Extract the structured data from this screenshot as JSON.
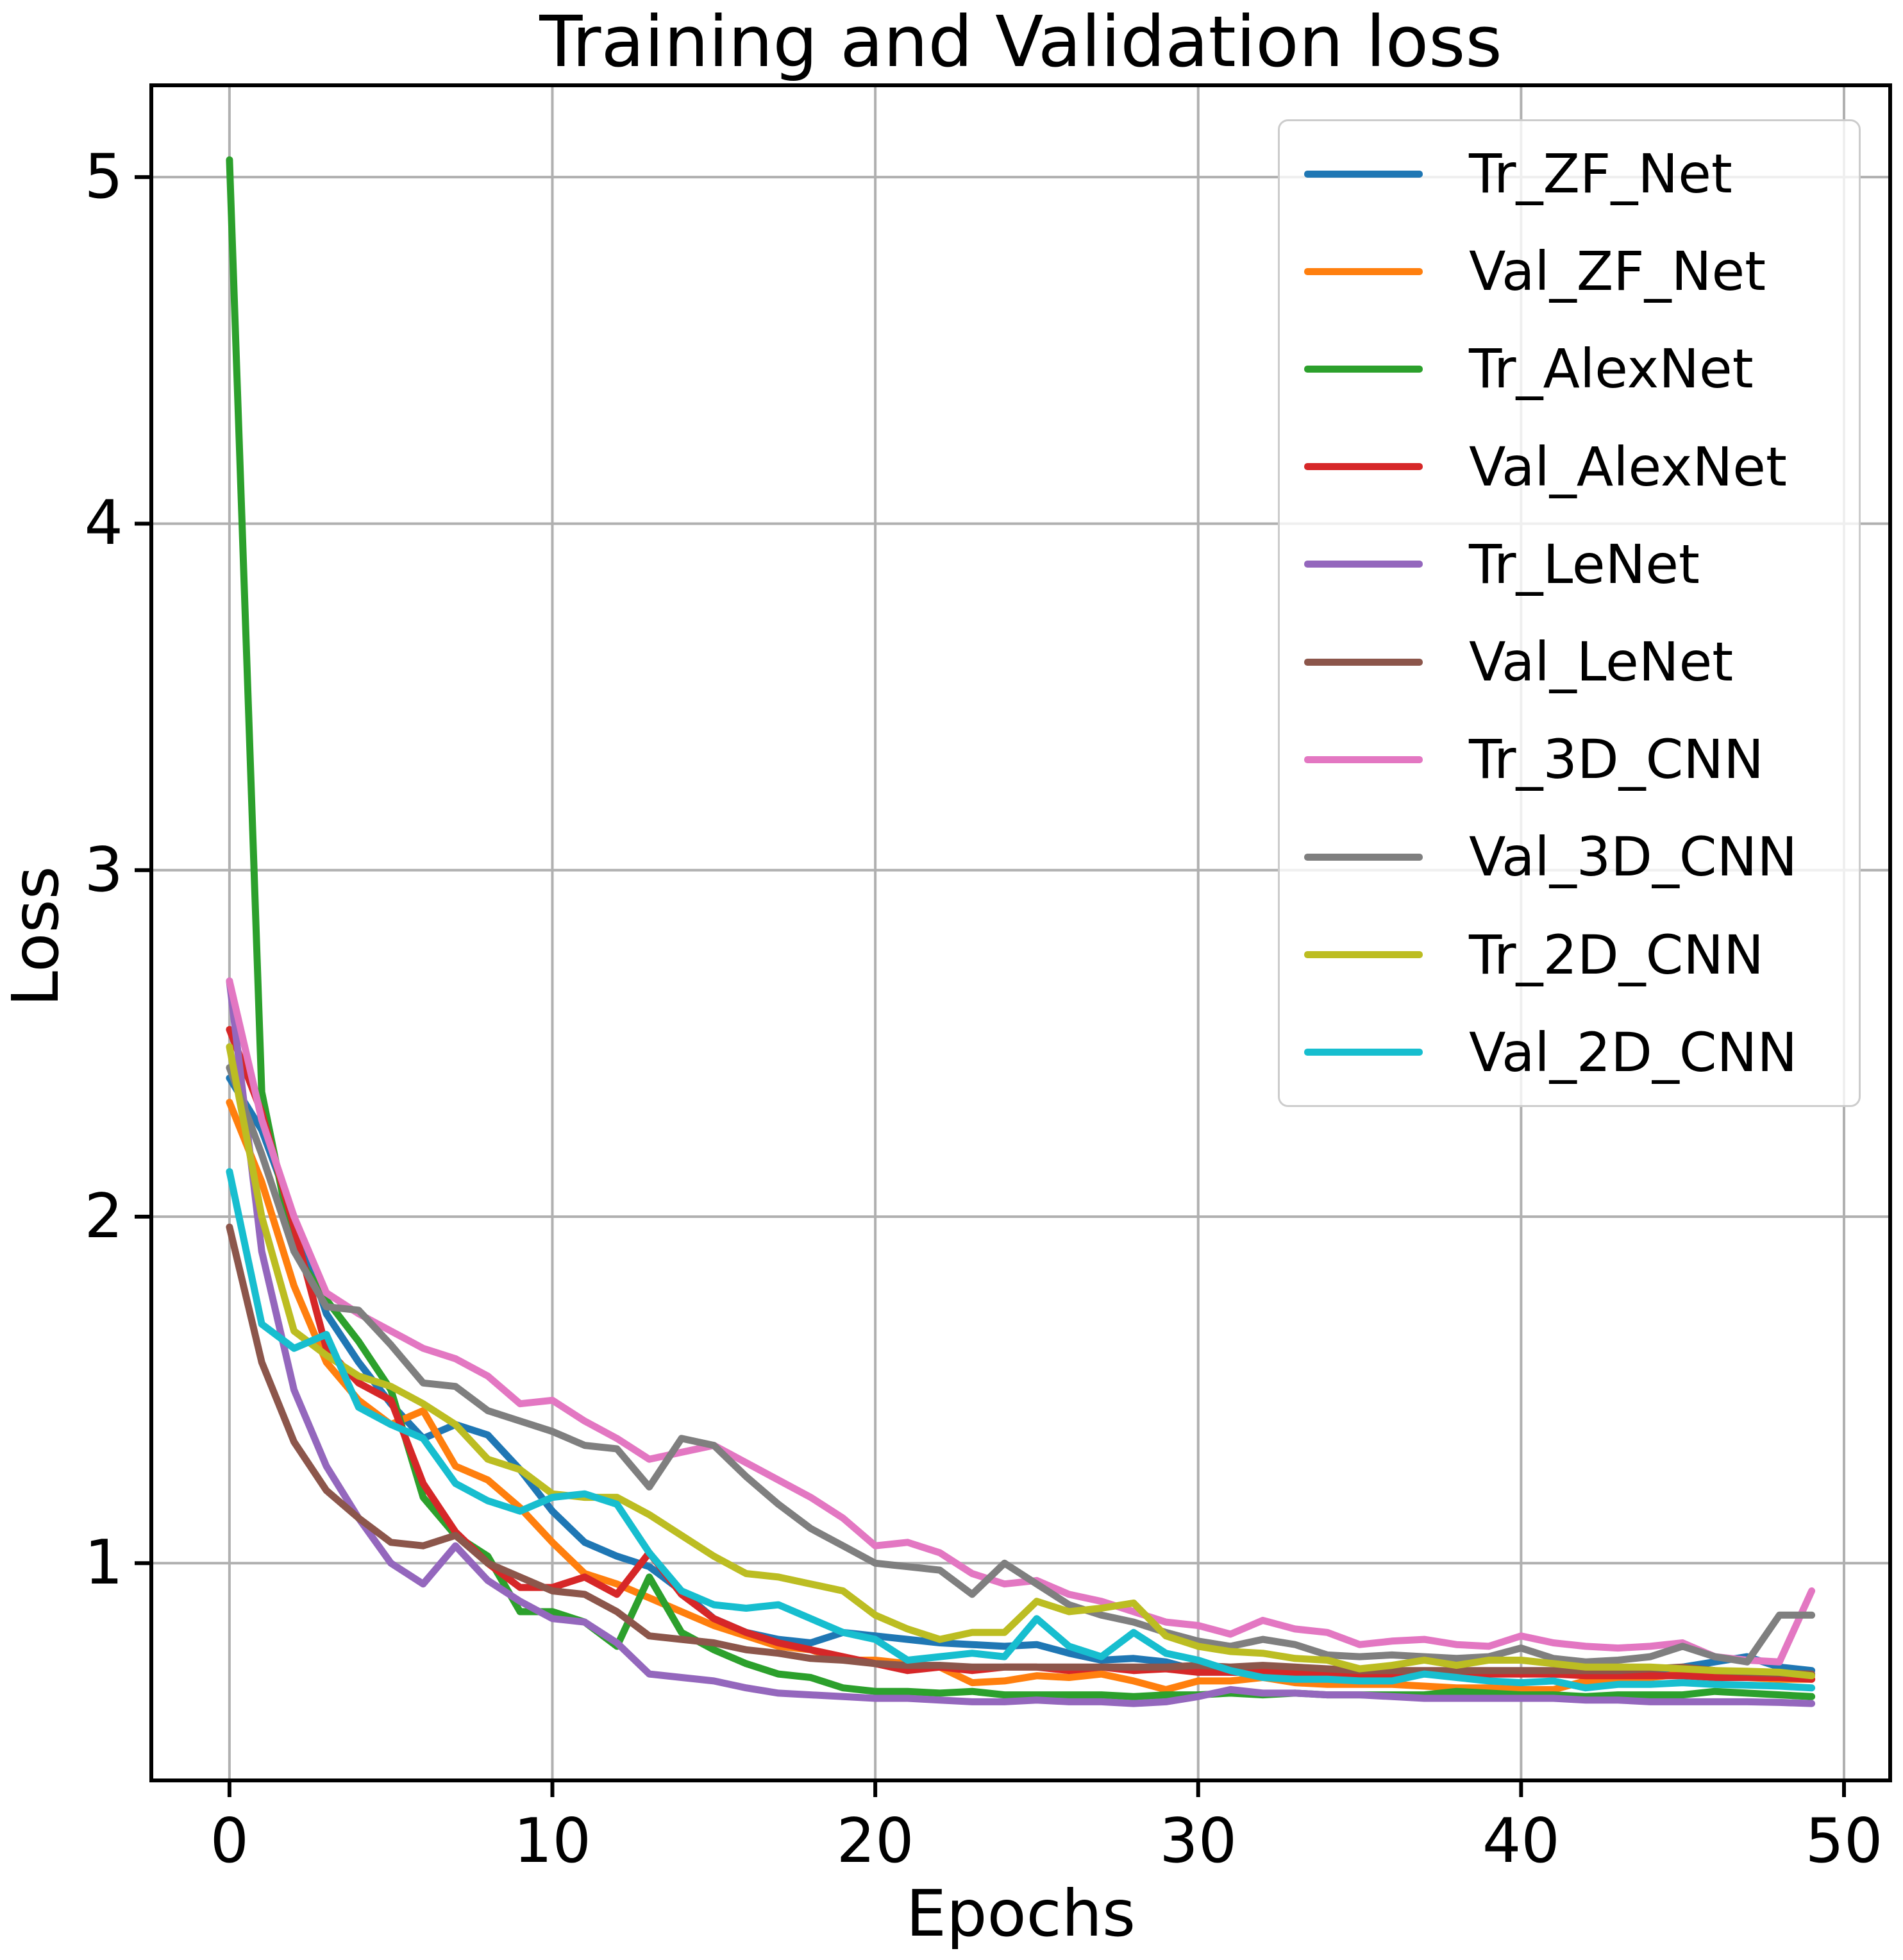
{
  "chart_data": {
    "type": "line",
    "title": "Training and Validation loss",
    "xlabel": "Epochs",
    "ylabel": "Loss",
    "x": [
      0,
      1,
      2,
      3,
      4,
      5,
      6,
      7,
      8,
      9,
      10,
      11,
      12,
      13,
      14,
      15,
      16,
      17,
      18,
      19,
      20,
      21,
      22,
      23,
      24,
      25,
      26,
      27,
      28,
      29,
      30,
      31,
      32,
      33,
      34,
      35,
      36,
      37,
      38,
      39,
      40,
      41,
      42,
      43,
      44,
      45,
      46,
      47,
      48,
      49
    ],
    "xticks": [
      0,
      10,
      20,
      30,
      40,
      50
    ],
    "yticks": [
      1,
      2,
      3,
      4,
      5
    ],
    "xlim": [
      -2.42,
      51.43
    ],
    "ylim": [
      0.373,
      5.265
    ],
    "grid": true,
    "grid_color": "#b0b0b0",
    "spine_color": "#000000",
    "background": "#ffffff",
    "legend_position": "upper right",
    "series": [
      {
        "name": "Tr_ZF_Net",
        "color": "#1f77b4",
        "values": [
          2.4,
          2.25,
          2.0,
          1.72,
          1.58,
          1.46,
          1.36,
          1.4,
          1.37,
          1.27,
          1.15,
          1.06,
          1.02,
          0.99,
          0.92,
          0.84,
          0.8,
          0.78,
          0.77,
          0.8,
          0.79,
          0.78,
          0.77,
          0.765,
          0.76,
          0.765,
          0.74,
          0.72,
          0.725,
          0.715,
          0.69,
          0.685,
          0.685,
          0.685,
          0.68,
          0.68,
          0.68,
          0.68,
          0.68,
          0.68,
          0.685,
          0.68,
          0.68,
          0.685,
          0.69,
          0.7,
          0.715,
          0.73,
          0.7,
          0.69
        ]
      },
      {
        "name": "Val_ZF_Net",
        "color": "#ff7f0e",
        "values": [
          2.33,
          2.1,
          1.8,
          1.58,
          1.47,
          1.4,
          1.44,
          1.28,
          1.24,
          1.16,
          1.06,
          0.97,
          0.94,
          0.9,
          0.86,
          0.82,
          0.79,
          0.76,
          0.75,
          0.72,
          0.72,
          0.71,
          0.7,
          0.655,
          0.66,
          0.675,
          0.67,
          0.68,
          0.66,
          0.635,
          0.66,
          0.66,
          0.67,
          0.655,
          0.65,
          0.65,
          0.65,
          0.645,
          0.64,
          0.64,
          0.635,
          0.635,
          0.66,
          0.66,
          0.67,
          0.68,
          0.68,
          0.67,
          0.665,
          0.665
        ]
      },
      {
        "name": "Tr_AlexNet",
        "color": "#2ca02c",
        "values": [
          5.05,
          2.36,
          1.9,
          1.76,
          1.64,
          1.5,
          1.19,
          1.08,
          1.02,
          0.86,
          0.86,
          0.83,
          0.76,
          0.96,
          0.8,
          0.75,
          0.71,
          0.68,
          0.67,
          0.64,
          0.63,
          0.63,
          0.625,
          0.63,
          0.62,
          0.62,
          0.62,
          0.62,
          0.615,
          0.62,
          0.62,
          0.625,
          0.62,
          0.625,
          0.62,
          0.62,
          0.62,
          0.62,
          0.63,
          0.625,
          0.62,
          0.62,
          0.615,
          0.62,
          0.62,
          0.62,
          0.63,
          0.625,
          0.62,
          0.615
        ]
      },
      {
        "name": "Val_AlexNet",
        "color": "#d62728",
        "values": [
          2.54,
          2.3,
          1.97,
          1.62,
          1.52,
          1.47,
          1.23,
          1.09,
          1.0,
          0.93,
          0.93,
          0.96,
          0.91,
          1.03,
          0.91,
          0.84,
          0.8,
          0.77,
          0.75,
          0.73,
          0.71,
          0.69,
          0.7,
          0.69,
          0.7,
          0.7,
          0.69,
          0.7,
          0.69,
          0.695,
          0.685,
          0.685,
          0.685,
          0.685,
          0.685,
          0.68,
          0.68,
          0.685,
          0.68,
          0.68,
          0.68,
          0.68,
          0.675,
          0.675,
          0.675,
          0.675,
          0.67,
          0.67,
          0.67,
          0.665
        ]
      },
      {
        "name": "Tr_LeNet",
        "color": "#9467bd",
        "values": [
          2.68,
          1.9,
          1.5,
          1.28,
          1.13,
          1.0,
          0.94,
          1.05,
          0.95,
          0.89,
          0.84,
          0.83,
          0.77,
          0.68,
          0.67,
          0.66,
          0.64,
          0.625,
          0.62,
          0.615,
          0.61,
          0.61,
          0.605,
          0.6,
          0.6,
          0.605,
          0.6,
          0.6,
          0.595,
          0.6,
          0.615,
          0.635,
          0.625,
          0.625,
          0.62,
          0.62,
          0.615,
          0.61,
          0.61,
          0.61,
          0.61,
          0.61,
          0.605,
          0.605,
          0.6,
          0.6,
          0.6,
          0.6,
          0.598,
          0.595
        ]
      },
      {
        "name": "Val_LeNet",
        "color": "#8c564b",
        "values": [
          1.97,
          1.58,
          1.35,
          1.21,
          1.13,
          1.06,
          1.05,
          1.08,
          1.0,
          0.96,
          0.92,
          0.91,
          0.86,
          0.79,
          0.78,
          0.77,
          0.75,
          0.74,
          0.725,
          0.72,
          0.71,
          0.705,
          0.705,
          0.7,
          0.7,
          0.7,
          0.7,
          0.7,
          0.7,
          0.7,
          0.705,
          0.7,
          0.705,
          0.7,
          0.695,
          0.69,
          0.69,
          0.69,
          0.69,
          0.69,
          0.69,
          0.69,
          0.69,
          0.69,
          0.695,
          0.7,
          0.69,
          0.685,
          0.682,
          0.68
        ]
      },
      {
        "name": "Tr_3D_CNN",
        "color": "#e377c2",
        "values": [
          2.68,
          2.28,
          2.0,
          1.78,
          1.72,
          1.67,
          1.62,
          1.59,
          1.54,
          1.46,
          1.47,
          1.41,
          1.36,
          1.3,
          1.32,
          1.34,
          1.29,
          1.24,
          1.19,
          1.13,
          1.05,
          1.06,
          1.03,
          0.97,
          0.94,
          0.95,
          0.91,
          0.89,
          0.86,
          0.83,
          0.82,
          0.795,
          0.835,
          0.81,
          0.8,
          0.765,
          0.775,
          0.78,
          0.765,
          0.76,
          0.79,
          0.77,
          0.76,
          0.755,
          0.76,
          0.77,
          0.73,
          0.72,
          0.715,
          0.92
        ]
      },
      {
        "name": "Val_3D_CNN",
        "color": "#7f7f7f",
        "values": [
          2.43,
          2.18,
          1.9,
          1.74,
          1.73,
          1.63,
          1.52,
          1.51,
          1.44,
          1.41,
          1.38,
          1.34,
          1.33,
          1.22,
          1.36,
          1.34,
          1.25,
          1.17,
          1.1,
          1.05,
          1.0,
          0.99,
          0.98,
          0.91,
          1.0,
          0.94,
          0.88,
          0.85,
          0.83,
          0.8,
          0.775,
          0.76,
          0.78,
          0.765,
          0.735,
          0.73,
          0.735,
          0.73,
          0.725,
          0.73,
          0.755,
          0.725,
          0.715,
          0.72,
          0.73,
          0.76,
          0.73,
          0.715,
          0.85,
          0.85
        ]
      },
      {
        "name": "Tr_2D_CNN",
        "color": "#bcbd22",
        "values": [
          2.49,
          2.0,
          1.67,
          1.6,
          1.54,
          1.51,
          1.46,
          1.4,
          1.3,
          1.27,
          1.2,
          1.19,
          1.19,
          1.14,
          1.08,
          1.02,
          0.97,
          0.96,
          0.94,
          0.92,
          0.85,
          0.81,
          0.78,
          0.8,
          0.8,
          0.89,
          0.86,
          0.87,
          0.885,
          0.79,
          0.76,
          0.745,
          0.74,
          0.725,
          0.72,
          0.695,
          0.705,
          0.72,
          0.705,
          0.72,
          0.72,
          0.71,
          0.7,
          0.7,
          0.7,
          0.695,
          0.69,
          0.688,
          0.685,
          0.675
        ]
      },
      {
        "name": "Val_2D_CNN",
        "color": "#17becf",
        "values": [
          2.13,
          1.69,
          1.62,
          1.66,
          1.45,
          1.4,
          1.36,
          1.23,
          1.18,
          1.15,
          1.19,
          1.2,
          1.17,
          1.03,
          0.92,
          0.88,
          0.87,
          0.88,
          0.84,
          0.8,
          0.78,
          0.72,
          0.73,
          0.74,
          0.73,
          0.84,
          0.76,
          0.73,
          0.8,
          0.74,
          0.72,
          0.69,
          0.67,
          0.665,
          0.665,
          0.66,
          0.66,
          0.68,
          0.67,
          0.66,
          0.655,
          0.66,
          0.64,
          0.65,
          0.65,
          0.655,
          0.65,
          0.648,
          0.645,
          0.64
        ]
      }
    ]
  }
}
